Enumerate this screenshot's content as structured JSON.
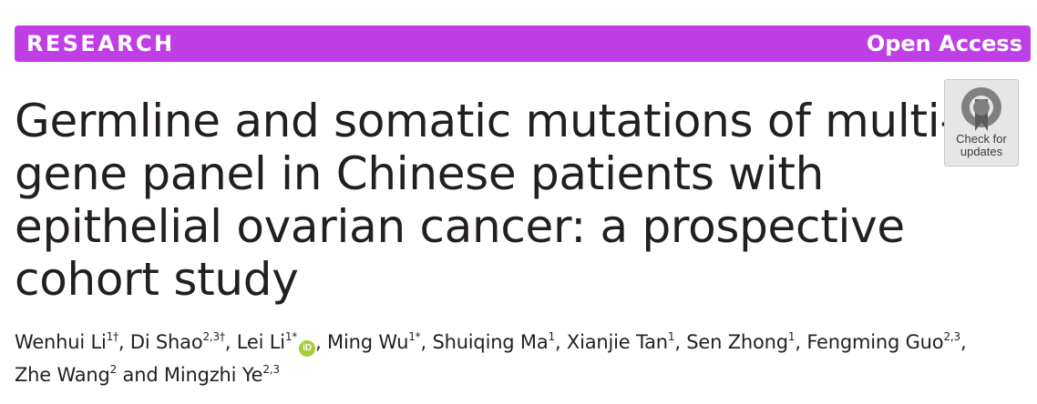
{
  "banner": {
    "left": "RESEARCH",
    "right": "Open Access",
    "color": "#c03ee6"
  },
  "title_lines": [
    "Germline and somatic mutations of multi-",
    "gene panel in Chinese patients with",
    "epithelial ovarian cancer: a prospective",
    "cohort study"
  ],
  "check_badge": {
    "icon": "crossmark-icon",
    "line1": "Check for",
    "line2": "updates"
  },
  "authors": [
    {
      "name": "Wenhui Li",
      "sup": "1†",
      "sep": ", "
    },
    {
      "name": "Di Shao",
      "sup": "2,3†",
      "sep": ", "
    },
    {
      "name": "Lei Li",
      "sup": "1*",
      "orcid": "iD",
      "sep": ", "
    },
    {
      "name": "Ming Wu",
      "sup": "1*",
      "sep": ", "
    },
    {
      "name": "Shuiqing Ma",
      "sup": "1",
      "sep": ", "
    },
    {
      "name": "Xianjie Tan",
      "sup": "1",
      "sep": ", "
    },
    {
      "name": "Sen Zhong",
      "sup": "1",
      "sep": ", "
    },
    {
      "name": "Fengming Guo",
      "sup": "2,3",
      "sep": ","
    },
    {
      "name": "Zhe Wang",
      "sup": "2",
      "sep": " and "
    },
    {
      "name": "Mingzhi Ye",
      "sup": "2,3",
      "sep": ""
    }
  ]
}
